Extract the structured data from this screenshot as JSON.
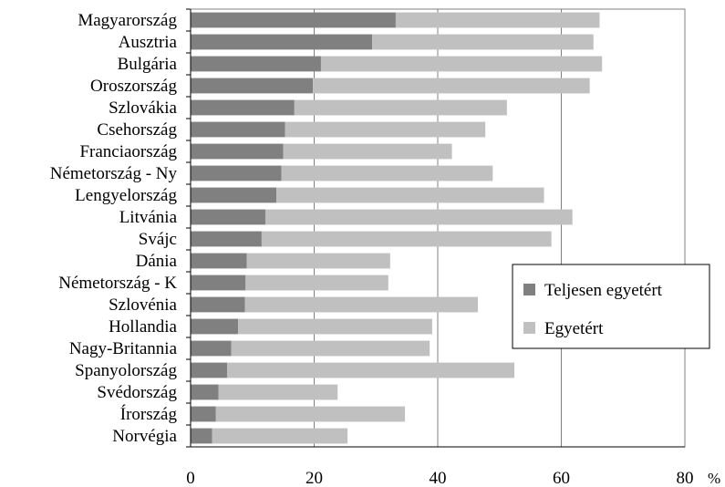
{
  "chart_data": {
    "type": "bar",
    "orientation": "horizontal",
    "stacked": true,
    "categories": [
      "Magyarország",
      "Ausztria",
      "Bulgária",
      "Oroszország",
      "Szlovákia",
      "Csehország",
      "Franciaország",
      "Németország - Ny",
      "Lengyelország",
      "Litvánia",
      "Svájc",
      "Dánia",
      "Németország - K",
      "Szlovénia",
      "Hollandia",
      "Nagy-Britannia",
      "Spanyolország",
      "Svédország",
      "Írország",
      "Norvégia"
    ],
    "series": [
      {
        "name": "Teljesen egyetért",
        "color": "#808080",
        "values": [
          33.2,
          29.4,
          21.1,
          19.8,
          16.8,
          15.3,
          15.0,
          14.7,
          13.9,
          12.1,
          11.5,
          9.1,
          8.9,
          8.8,
          7.7,
          6.6,
          5.9,
          4.5,
          4.1,
          3.5
        ]
      },
      {
        "name": "Egyetért",
        "color": "#c0c0c0",
        "values": [
          33.0,
          35.8,
          45.5,
          44.8,
          34.4,
          32.4,
          27.3,
          34.2,
          43.3,
          49.7,
          46.9,
          23.2,
          23.1,
          37.7,
          31.4,
          32.1,
          46.5,
          19.3,
          30.6,
          21.9
        ]
      }
    ],
    "xlim": [
      0,
      80
    ],
    "xticks": [
      "0",
      "20",
      "40",
      "60",
      "80"
    ],
    "x_unit": "%",
    "grid": "vertical",
    "legend": "right"
  }
}
